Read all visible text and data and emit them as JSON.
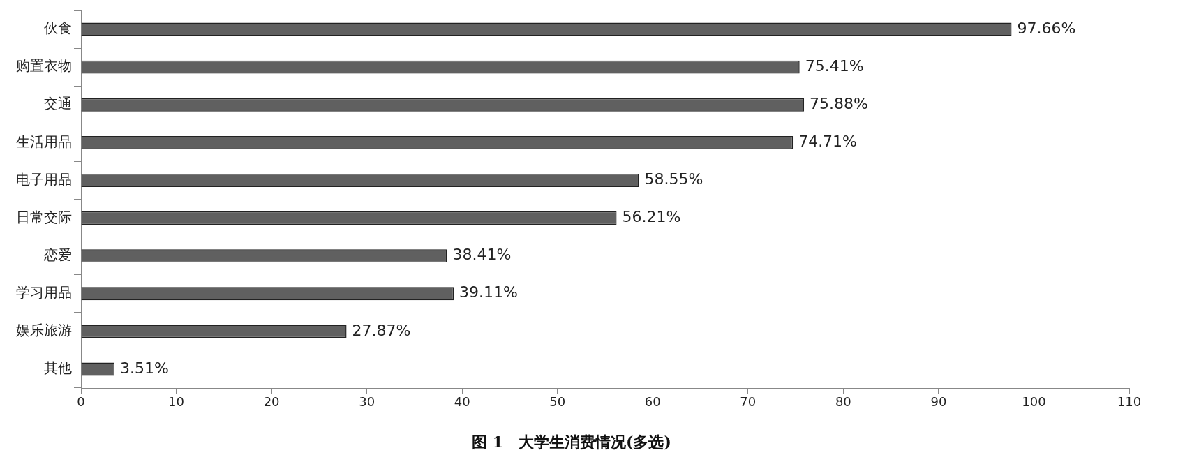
{
  "chart_data": {
    "type": "bar",
    "orientation": "horizontal",
    "title": "图 1　大学生消费情况(多选)",
    "categories": [
      "伙食",
      "购置衣物",
      "交通",
      "生活用品",
      "电子用品",
      "日常交际",
      "恋爱",
      "学习用品",
      "娱乐旅游",
      "其他"
    ],
    "values": [
      97.66,
      75.41,
      75.88,
      74.71,
      58.55,
      56.21,
      38.41,
      39.11,
      27.87,
      3.51
    ],
    "value_labels": [
      "97.66%",
      "75.41%",
      "75.88%",
      "74.71%",
      "58.55%",
      "56.21%",
      "38.41%",
      "39.11%",
      "27.87%",
      "3.51%"
    ],
    "color": "#606060",
    "xlim": [
      0,
      110
    ],
    "xticks": [
      0,
      10,
      20,
      30,
      40,
      50,
      60,
      70,
      80,
      90,
      100,
      110
    ],
    "grid": false,
    "legend": false
  }
}
